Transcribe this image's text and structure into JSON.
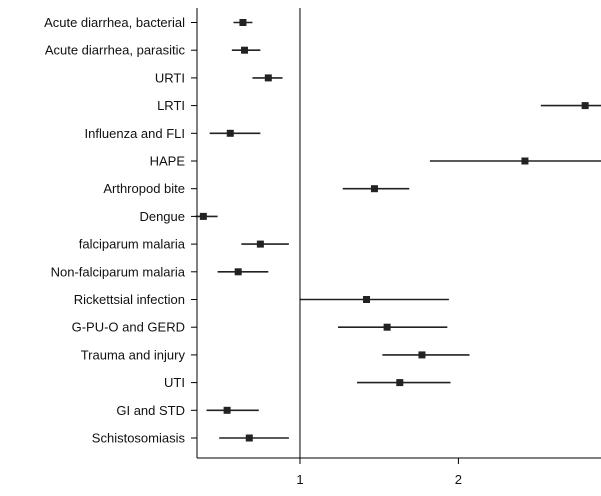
{
  "chart_data": {
    "type": "forest",
    "title": "",
    "xlabel": "",
    "ylabel": "",
    "xlim": [
      0.35,
      2.9
    ],
    "reference_line": 1,
    "x_ticks": [
      "1",
      "2"
    ],
    "x_tick_values": [
      1,
      2
    ],
    "grid": false,
    "colors": {
      "marker": "#222222",
      "line": "#222222",
      "axis": "#000000"
    },
    "rows": [
      {
        "label": "Acute diarrhea, bacterial",
        "estimate": 0.64,
        "low": 0.58,
        "high": 0.7
      },
      {
        "label": "Acute diarrhea, parasitic",
        "estimate": 0.65,
        "low": 0.57,
        "high": 0.75
      },
      {
        "label": "URTI",
        "estimate": 0.8,
        "low": 0.7,
        "high": 0.89
      },
      {
        "label": "LRTI",
        "estimate": 2.8,
        "low": 2.52,
        "high": 2.9
      },
      {
        "label": "Influenza and FLI",
        "estimate": 0.56,
        "low": 0.43,
        "high": 0.75
      },
      {
        "label": "HAPE",
        "estimate": 2.42,
        "low": 1.82,
        "high": 2.9
      },
      {
        "label": "Arthropod   bite",
        "estimate": 1.47,
        "low": 1.27,
        "high": 1.69
      },
      {
        "label": "Dengue",
        "estimate": 0.39,
        "low": 0.34,
        "high": 0.48
      },
      {
        "label": "falciparum malaria",
        "estimate": 0.75,
        "low": 0.63,
        "high": 0.93
      },
      {
        "label": "Non-falciparum malaria",
        "estimate": 0.61,
        "low": 0.48,
        "high": 0.8
      },
      {
        "label": "Rickettsial infection",
        "estimate": 1.42,
        "low": 1.0,
        "high": 1.94
      },
      {
        "label": "G-PU-O and GERD",
        "estimate": 1.55,
        "low": 1.24,
        "high": 1.93
      },
      {
        "label": "Trauma and injury",
        "estimate": 1.77,
        "low": 1.52,
        "high": 2.07
      },
      {
        "label": "UTI",
        "estimate": 1.63,
        "low": 1.36,
        "high": 1.95
      },
      {
        "label": "GI and STD",
        "estimate": 0.54,
        "low": 0.41,
        "high": 0.74
      },
      {
        "label": "Schistosomiasis",
        "estimate": 0.68,
        "low": 0.49,
        "high": 0.93
      }
    ]
  }
}
